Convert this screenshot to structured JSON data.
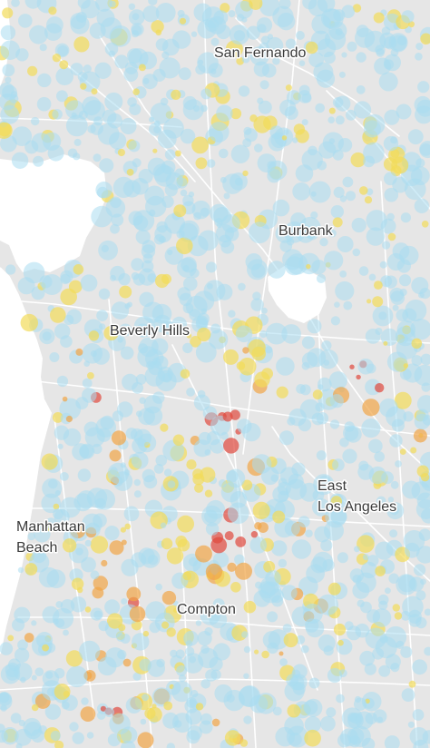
{
  "labels": {
    "san_fernando": "San Fernando",
    "burbank": "Burbank",
    "beverly_hills": "Beverly Hills",
    "east_los_angeles_line1": "East",
    "east_los_angeles_line2": "Los Angeles",
    "manhattan_beach_line1": "Manhattan",
    "manhattan_beach_line2": "Beach",
    "compton": "Compton"
  },
  "colors": {
    "land": "#e6e6e6",
    "open_space": "#ffffff",
    "roads": "#ffffff",
    "coastline": "#ffffff",
    "dot_blue": "#a9dcf0",
    "dot_yellow": "#f2dc5a",
    "dot_orange": "#f1a547",
    "dot_red": "#e0493d"
  },
  "dot_categories": [
    "blue",
    "yellow",
    "orange",
    "red"
  ]
}
